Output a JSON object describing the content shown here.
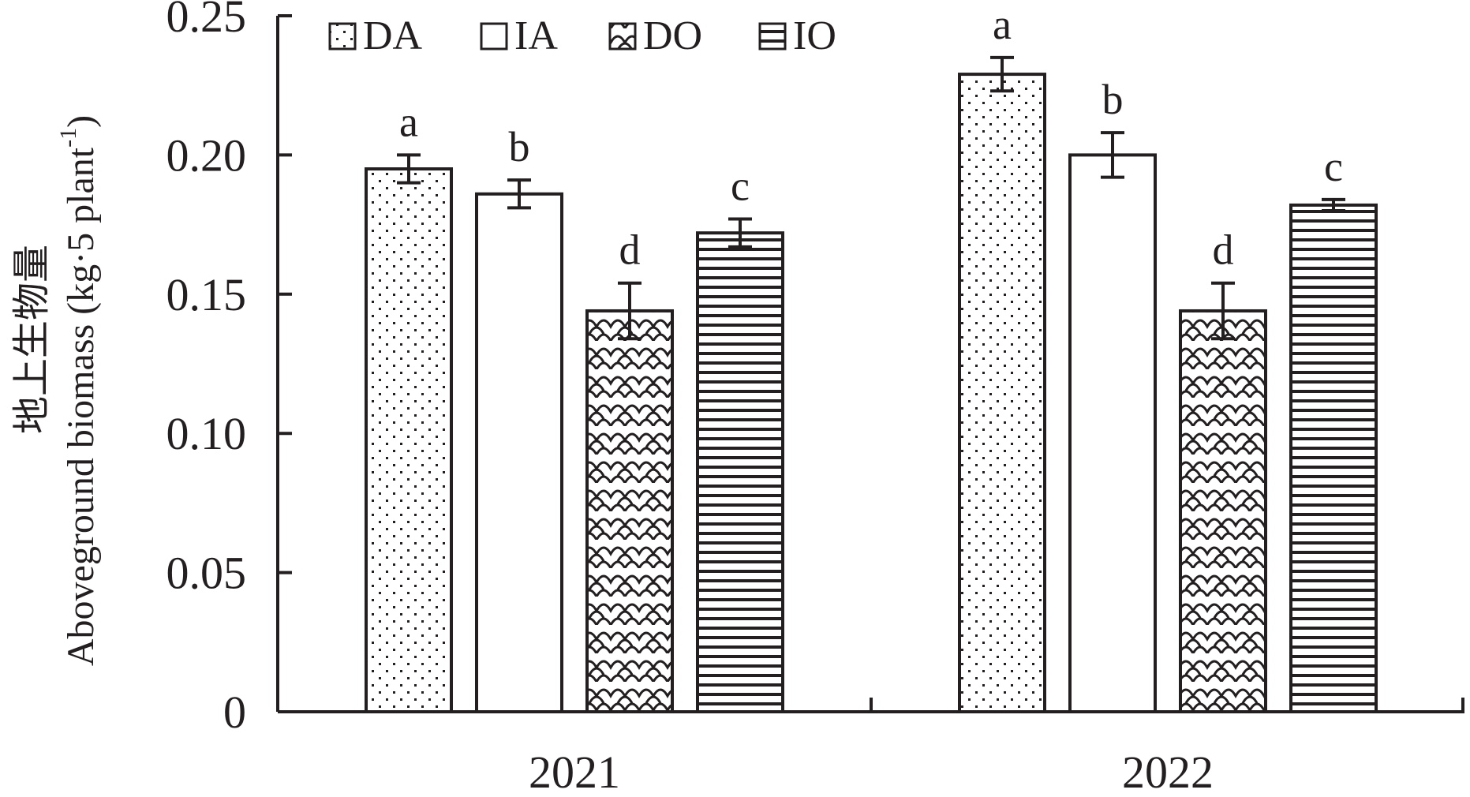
{
  "chart_data": {
    "type": "bar",
    "title": "",
    "xlabel": "",
    "ylabel_cn": "地上生物量",
    "ylabel_en": "Aboveground biomass (kg·5 plant",
    "ylabel_sup": "-1",
    "ylabel_close": ")",
    "ylim": [
      0,
      0.25
    ],
    "yticks": [
      0,
      0.05,
      0.1,
      0.15,
      0.2,
      0.25
    ],
    "ytick_labels": [
      "0",
      "0.05",
      "0.10",
      "0.15",
      "0.20",
      "0.25"
    ],
    "categories": [
      "2021",
      "2022"
    ],
    "legend_position": "top-left",
    "series": [
      {
        "name": "DA",
        "pattern": "dots",
        "values": [
          0.195,
          0.229
        ],
        "errors": [
          0.005,
          0.006
        ],
        "sig": [
          "a",
          "a"
        ]
      },
      {
        "name": "IA",
        "pattern": "blank",
        "values": [
          0.186,
          0.2
        ],
        "errors": [
          0.005,
          0.008
        ],
        "sig": [
          "b",
          "b"
        ]
      },
      {
        "name": "DO",
        "pattern": "scales",
        "values": [
          0.144,
          0.144
        ],
        "errors": [
          0.01,
          0.01
        ],
        "sig": [
          "d",
          "d"
        ]
      },
      {
        "name": "IO",
        "pattern": "hlines",
        "values": [
          0.172,
          0.182
        ],
        "errors": [
          0.005,
          0.002
        ],
        "sig": [
          "c",
          "c"
        ]
      }
    ],
    "colors": {
      "ink": "#231f20",
      "background": "#ffffff"
    }
  }
}
